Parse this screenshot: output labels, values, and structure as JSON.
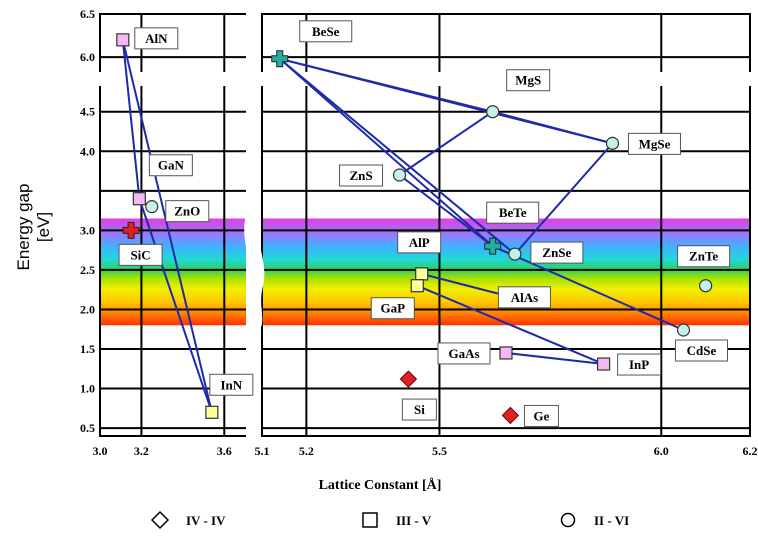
{
  "chart_data": {
    "type": "scatter",
    "ylabel": "Energy gap [eV]",
    "xlabel": "Lattice Constant [Å]",
    "x_axis_segments": [
      {
        "range": [
          3.0,
          3.7
        ],
        "ticks": [
          "3.0",
          "3.2",
          "3.6"
        ],
        "tick_values": [
          3.0,
          3.2,
          3.6
        ]
      },
      {
        "range": [
          5.1,
          6.2
        ],
        "ticks": [
          "5.1",
          "5.2",
          "5.5",
          "6.0",
          "6.2"
        ],
        "tick_values": [
          5.1,
          5.2,
          5.5,
          6.0,
          6.2
        ]
      }
    ],
    "y_axis_segments": [
      {
        "range": [
          0.4,
          4.8
        ],
        "ticks": [
          "0.5",
          "1.0",
          "1.5",
          "2.0",
          "2.5",
          "3.0",
          "4.0",
          "4.5"
        ],
        "tick_values": [
          0.5,
          1.0,
          1.5,
          2.0,
          2.5,
          3.0,
          4.0,
          4.5
        ]
      },
      {
        "range": [
          5.85,
          6.5
        ],
        "ticks": [
          "6.0",
          "6.5"
        ],
        "tick_values": [
          6.0,
          6.5
        ]
      }
    ],
    "grid": true,
    "legend_position": "bottom",
    "legend": [
      {
        "marker": "diamond",
        "label": "IV - IV"
      },
      {
        "marker": "square",
        "label": "III - V"
      },
      {
        "marker": "circle",
        "label": "II - VI"
      }
    ],
    "series": [
      {
        "name": "IV - IV",
        "marker": "diamond",
        "points": [
          {
            "label": "SiC",
            "x": 3.15,
            "y": 3.0,
            "color": "#e02020",
            "marker": "cross"
          },
          {
            "label": "Si",
            "x": 5.43,
            "y": 1.12,
            "color": "#e02020"
          },
          {
            "label": "Ge",
            "x": 5.66,
            "y": 0.66,
            "color": "#e02020"
          }
        ]
      },
      {
        "name": "III - V",
        "marker": "square",
        "points": [
          {
            "label": "AlN",
            "x": 3.11,
            "y": 6.2,
            "color": "#f4b8f4"
          },
          {
            "label": "GaN",
            "x": 3.19,
            "y": 3.4,
            "color": "#f4b8f4"
          },
          {
            "label": "InN",
            "x": 3.54,
            "y": 0.7,
            "color": "#ffff99"
          },
          {
            "label": "BeSe",
            "x": 5.14,
            "y": 5.98,
            "color": "#20b0a0",
            "marker": "cross"
          },
          {
            "label": "AlP",
            "x": 5.46,
            "y": 2.45,
            "color": "#ffff99"
          },
          {
            "label": "GaP",
            "x": 5.45,
            "y": 2.3,
            "color": "#ffff99"
          },
          {
            "label": "AlAs",
            "x": 5.66,
            "y": 2.16,
            "color": "#ffff99"
          },
          {
            "label": "GaAs",
            "x": 5.65,
            "y": 1.45,
            "color": "#f4b8f4"
          },
          {
            "label": "InP",
            "x": 5.87,
            "y": 1.31,
            "color": "#f4b8f4"
          },
          {
            "label": "BeTe",
            "x": 5.62,
            "y": 2.8,
            "color": "#20b0a0",
            "marker": "cross"
          }
        ]
      },
      {
        "name": "II - VI",
        "marker": "circle",
        "points": [
          {
            "label": "ZnO",
            "x": 3.25,
            "y": 3.3,
            "color": "#c8f0e8"
          },
          {
            "label": "MgS",
            "x": 5.62,
            "y": 4.5,
            "color": "#c8f0e8"
          },
          {
            "label": "MgSe",
            "x": 5.89,
            "y": 4.1,
            "color": "#c8f0e8"
          },
          {
            "label": "ZnS",
            "x": 5.41,
            "y": 3.7,
            "color": "#c8f0e8"
          },
          {
            "label": "ZnSe",
            "x": 5.67,
            "y": 2.7,
            "color": "#c8f0e8"
          },
          {
            "label": "ZnTe",
            "x": 6.1,
            "y": 2.3,
            "color": "#c8f0e8"
          },
          {
            "label": "CdSe",
            "x": 6.05,
            "y": 1.74,
            "color": "#c8f0e8"
          }
        ]
      }
    ],
    "connections": [
      [
        "AlN",
        "GaN"
      ],
      [
        "GaN",
        "InN"
      ],
      [
        "AlN",
        "InN"
      ],
      [
        "BeSe",
        "MgS"
      ],
      [
        "MgS",
        "MgSe"
      ],
      [
        "MgSe",
        "ZnSe"
      ],
      [
        "BeSe",
        "ZnSe"
      ],
      [
        "ZnS",
        "MgS"
      ],
      [
        "ZnS",
        "BeTe"
      ],
      [
        "BeSe",
        "BeTe"
      ],
      [
        "BeTe",
        "CdSe"
      ],
      [
        "BeSe",
        "MgSe"
      ],
      [
        "AlP",
        "AlAs"
      ],
      [
        "GaP",
        "InP"
      ],
      [
        "GaAs",
        "InP"
      ]
    ],
    "band_visible_spectrum_ev": [
      1.8,
      3.15
    ]
  }
}
